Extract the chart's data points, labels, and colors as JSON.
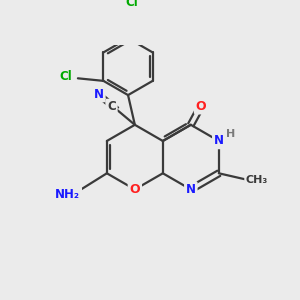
{
  "bg_color": "#ebebeb",
  "bond_color": "#3a3a3a",
  "bond_width": 1.6,
  "atom_colors": {
    "C": "#3a3a3a",
    "N": "#1a1aff",
    "O": "#ff2020",
    "Cl": "#00aa00",
    "H": "#7a7a7a"
  },
  "font_size": 8.5
}
